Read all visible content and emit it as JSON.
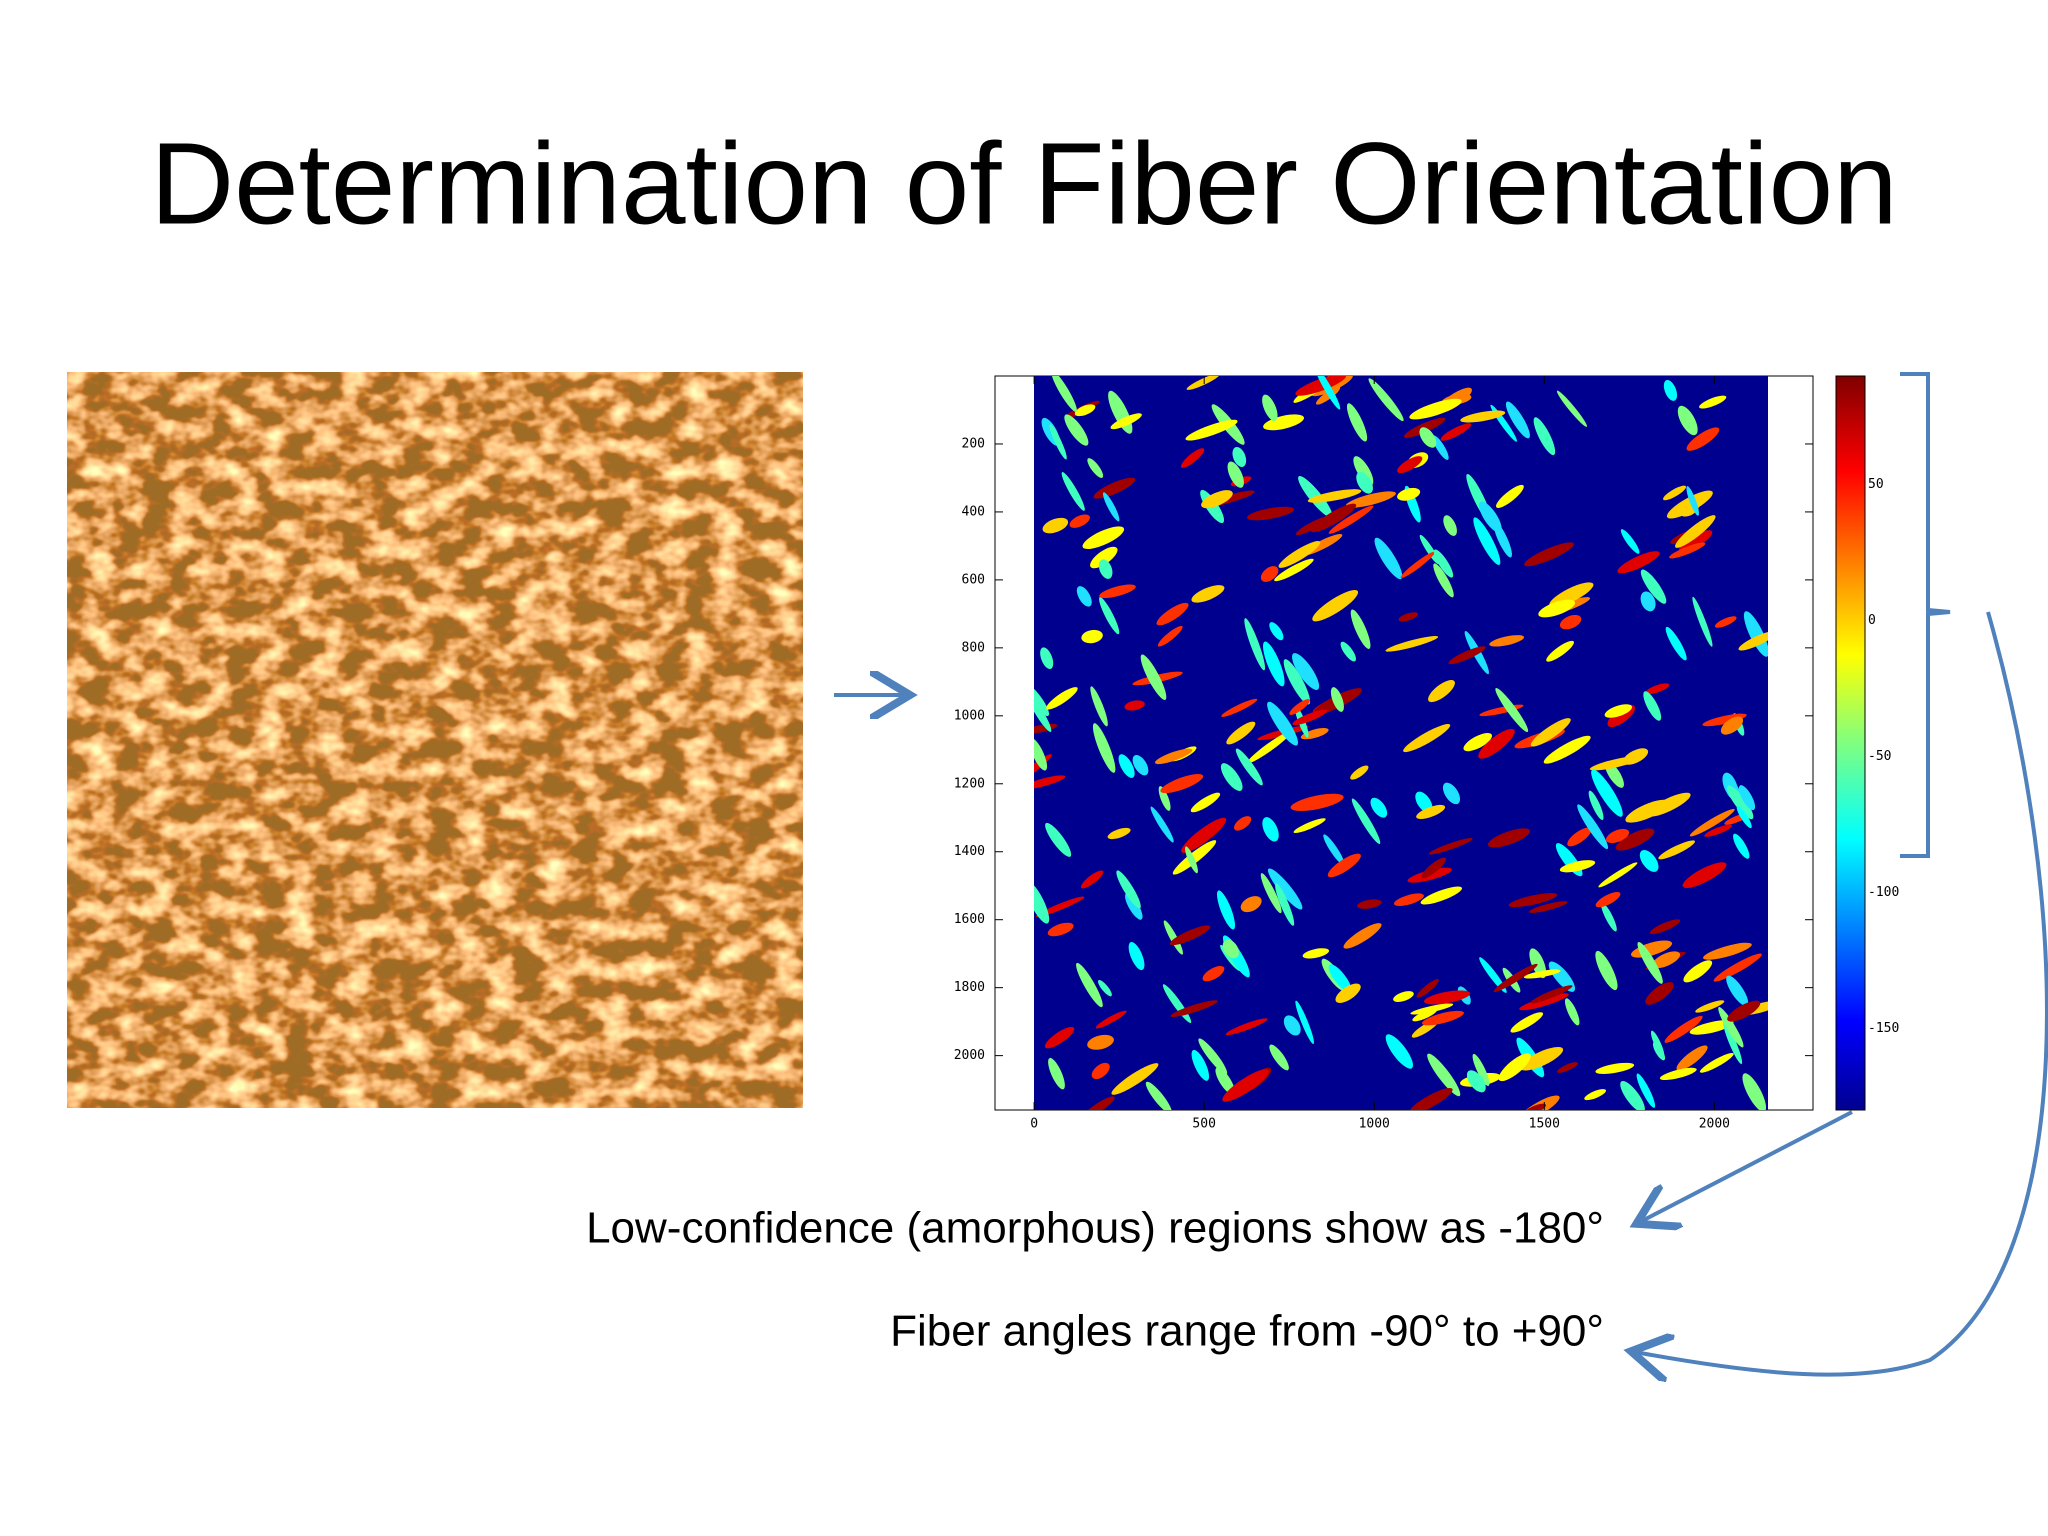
{
  "title": "Determination of Fiber Orientation",
  "figure": {
    "xticks": [
      0,
      500,
      1000,
      1500,
      2000
    ],
    "yticks": [
      200,
      400,
      600,
      800,
      1000,
      1200,
      1400,
      1600,
      1800,
      2000
    ],
    "xlim": [
      -115,
      2290
    ],
    "ylim": [
      0,
      2160
    ],
    "colorbar": {
      "ticks": [
        50,
        0,
        -50,
        -100,
        -150
      ],
      "lim": [
        -180,
        90
      ]
    }
  },
  "captions": [
    "Low-confidence (amorphous) regions show as -180°",
    "Fiber angles range from -90° to +90°"
  ]
}
